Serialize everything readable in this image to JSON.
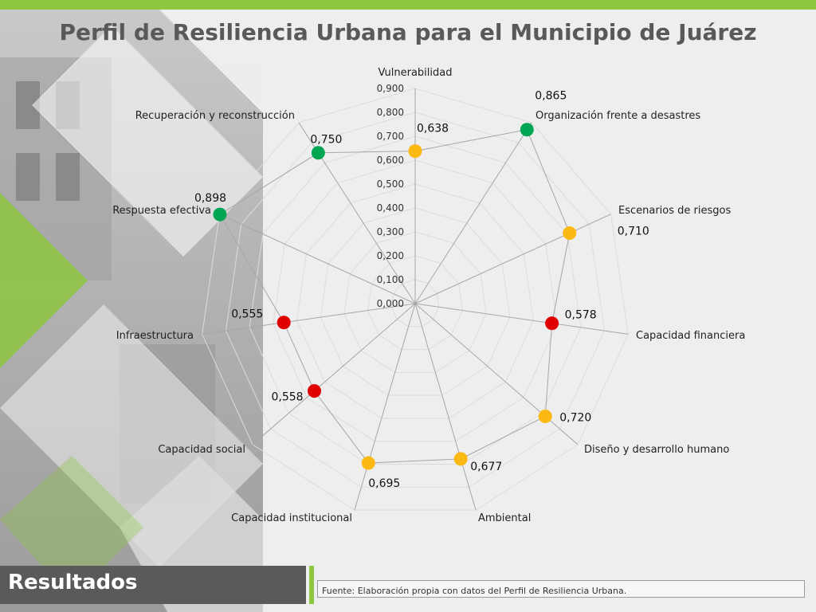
{
  "title": "Perfil de Resiliencia Urbana para el Municipio de Juárez",
  "footer": {
    "section_label": "Resultados",
    "source": "Fuente: Elaboración propia con datos del Perfil de Resiliencia Urbana."
  },
  "colors": {
    "accent": "#8dc63f",
    "green": "#00a651",
    "yellow": "#fcb813",
    "red": "#e00000"
  },
  "chart_data": {
    "type": "radar",
    "categories": [
      "Vulnerabilidad",
      "Organización frente a desastres",
      "Escenarios de riesgos",
      "Capacidad financiera",
      "Diseño y desarrollo humano",
      "Ambiental",
      "Capacidad institucional",
      "Capacidad social",
      "Infraestructura",
      "Respuesta efectiva",
      "Recuperación y reconstrucción"
    ],
    "values": [
      0.638,
      0.865,
      0.71,
      0.578,
      0.72,
      0.677,
      0.695,
      0.558,
      0.555,
      0.898,
      0.75
    ],
    "value_labels": [
      "0,638",
      "0,865",
      "0,710",
      "0,578",
      "0,720",
      "0,677",
      "0,695",
      "0,558",
      "0,555",
      "0,898",
      "0,750"
    ],
    "point_colors": [
      "yellow",
      "green",
      "yellow",
      "red",
      "yellow",
      "yellow",
      "yellow",
      "red",
      "red",
      "green",
      "green"
    ],
    "scale_ticks": [
      "0,000",
      "0,100",
      "0,200",
      "0,300",
      "0,400",
      "0,500",
      "0,600",
      "0,700",
      "0,800",
      "0,900"
    ],
    "range": [
      0,
      0.9
    ],
    "grid": true
  }
}
